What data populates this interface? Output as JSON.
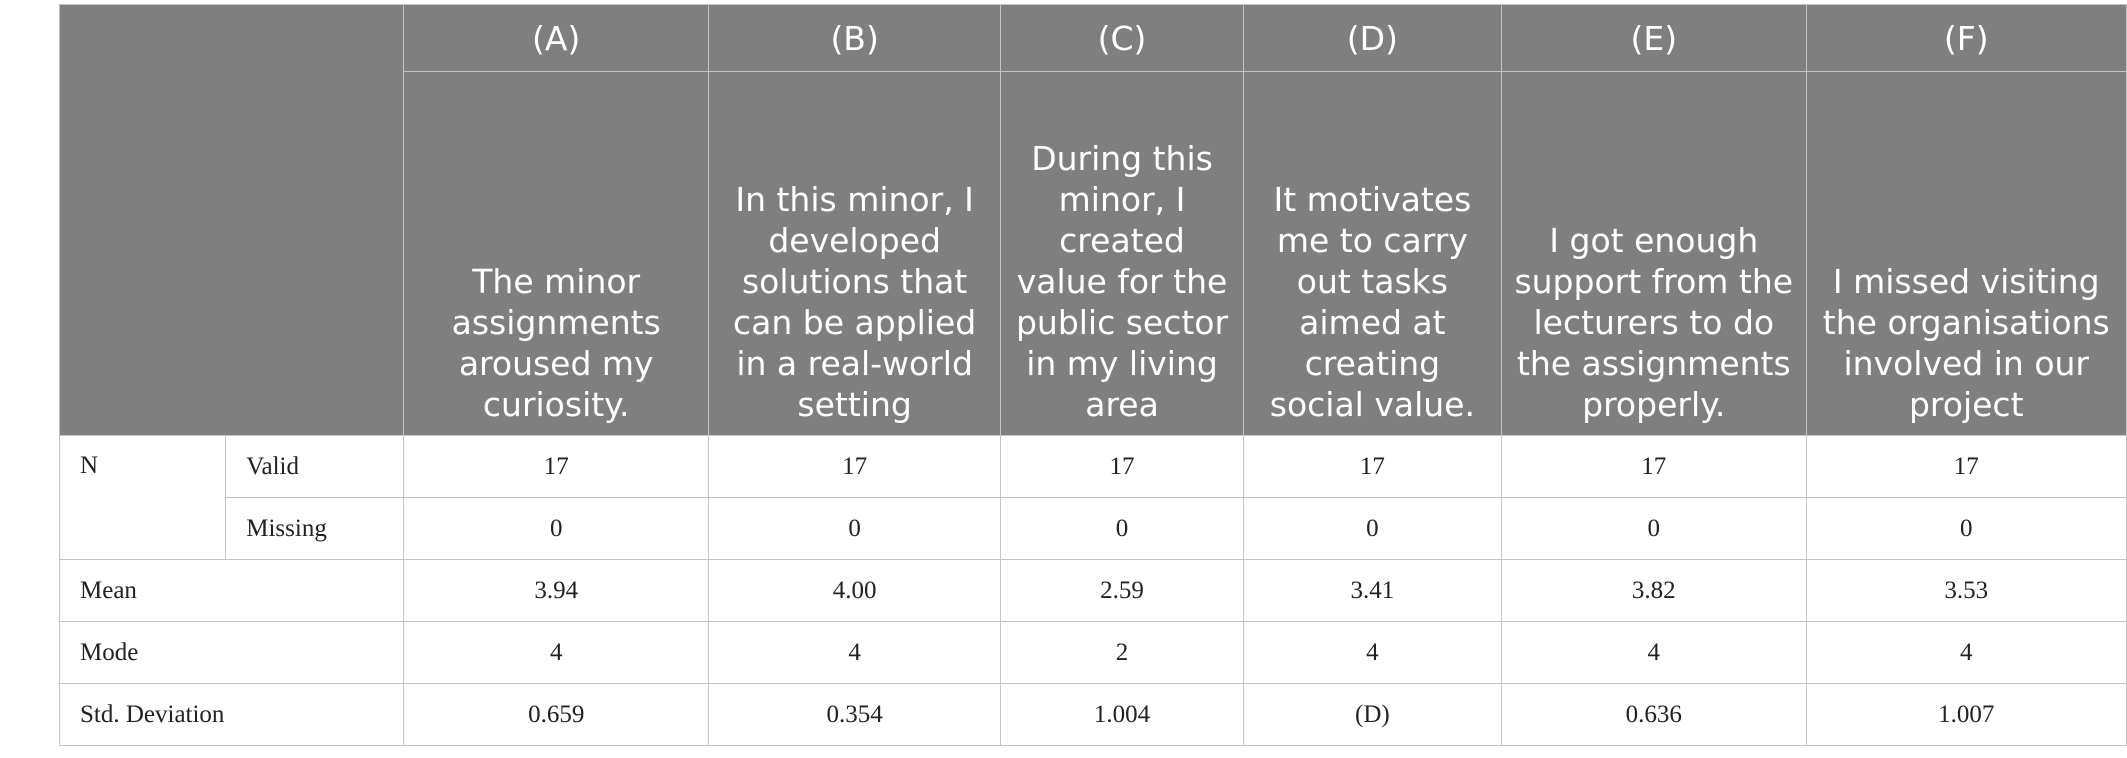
{
  "columns": [
    {
      "letter": "(A)",
      "question": "The minor assignments aroused my curiosity."
    },
    {
      "letter": "(B)",
      "question": "In this minor, I developed solutions that can be applied in a real-world setting"
    },
    {
      "letter": "(C)",
      "question": "During this minor, I created value for the public sector in my living area"
    },
    {
      "letter": "(D)",
      "question": "It motivates me to carry out tasks aimed at creating social value."
    },
    {
      "letter": "(E)",
      "question": "I got enough support from the lecturers to do the assignments properly."
    },
    {
      "letter": "(F)",
      "question": "I missed visiting the organisations involved in our project"
    }
  ],
  "rows": {
    "n_label": "N",
    "valid": {
      "label": "Valid",
      "values": [
        "17",
        "17",
        "17",
        "17",
        "17",
        "17"
      ]
    },
    "missing": {
      "label": "Missing",
      "values": [
        "0",
        "0",
        "0",
        "0",
        "0",
        "0"
      ]
    },
    "mean": {
      "label": "Mean",
      "values": [
        "3.94",
        "4.00",
        "2.59",
        "3.41",
        "3.82",
        "3.53"
      ]
    },
    "mode": {
      "label": "Mode",
      "values": [
        "4",
        "4",
        "2",
        "4",
        "4",
        "4"
      ]
    },
    "std": {
      "label": "Std. Deviation",
      "values": [
        "0.659",
        "0.354",
        "1.004",
        "(D)",
        "0.636",
        "1.007"
      ]
    }
  }
}
